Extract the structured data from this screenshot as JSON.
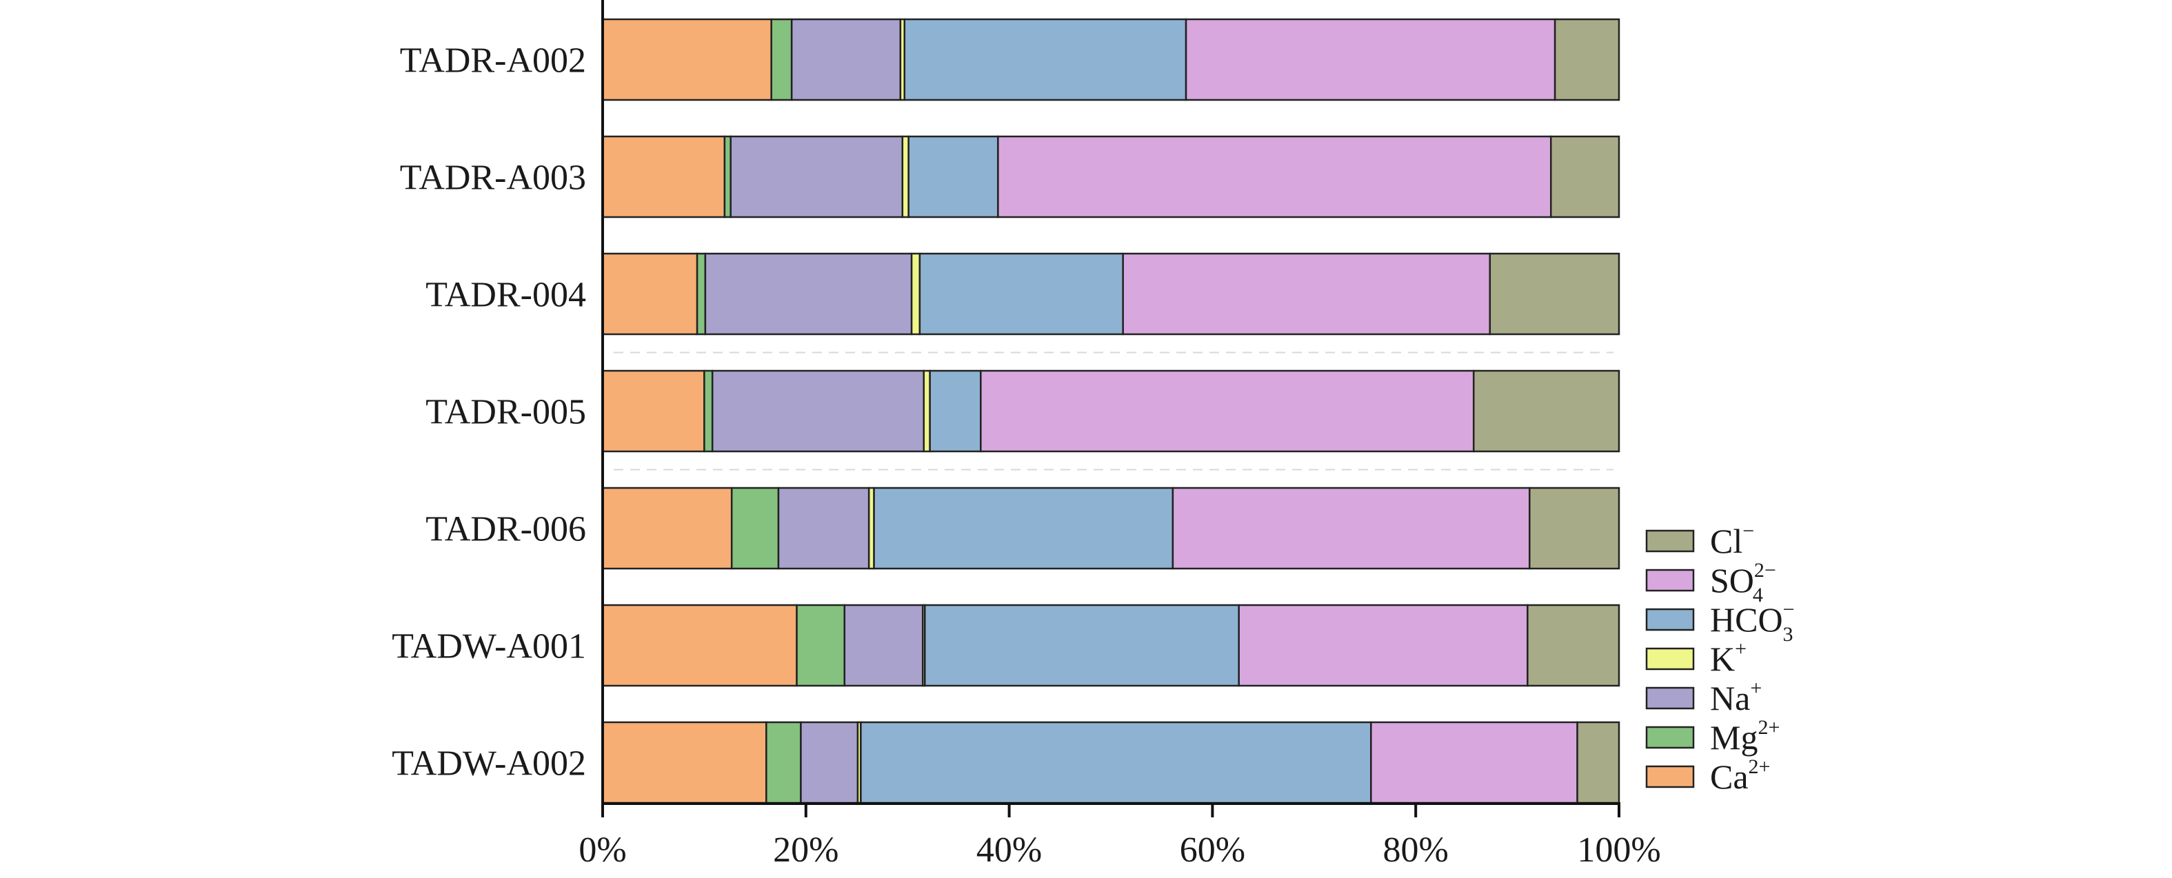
{
  "chart_data": {
    "type": "bar",
    "orientation": "horizontal",
    "stacked": true,
    "normalized": true,
    "title": "",
    "xlabel": "",
    "ylabel": "",
    "xlim": [
      0,
      100
    ],
    "x_ticks": [
      "0%",
      "20%",
      "40%",
      "60%",
      "80%",
      "100%"
    ],
    "categories": [
      "TADR-A002",
      "TADR-A003",
      "TADR-004",
      "TADR-005",
      "TADR-006",
      "TADW-A001",
      "TADW-A002"
    ],
    "legend_position": "right-bottom",
    "grid": false,
    "series": [
      {
        "name": "Ca2+",
        "label": {
          "base": "Ca",
          "sup": "2+",
          "sub": ""
        },
        "color": "#f7ae74",
        "values": [
          16.6,
          12.0,
          9.3,
          10.0,
          12.7,
          19.1,
          16.1
        ]
      },
      {
        "name": "Mg2+",
        "label": {
          "base": "Mg",
          "sup": "2+",
          "sub": ""
        },
        "color": "#85c17f",
        "values": [
          2.0,
          0.6,
          0.8,
          0.8,
          4.6,
          4.7,
          3.4
        ]
      },
      {
        "name": "Na+",
        "label": {
          "base": "Na",
          "sup": "+",
          "sub": ""
        },
        "color": "#a8a2cd",
        "values": [
          10.7,
          16.9,
          20.3,
          20.8,
          8.9,
          7.7,
          5.6
        ]
      },
      {
        "name": "K+",
        "label": {
          "base": "K",
          "sup": "+",
          "sub": ""
        },
        "color": "#eff68a",
        "values": [
          0.4,
          0.6,
          0.8,
          0.6,
          0.5,
          0.2,
          0.3
        ]
      },
      {
        "name": "HCO3-",
        "label": {
          "base": "HCO",
          "sup": "−",
          "sub": "3"
        },
        "color": "#8eb2d1",
        "values": [
          27.7,
          8.8,
          20.0,
          5.0,
          29.4,
          30.9,
          50.2
        ]
      },
      {
        "name": "SO42-",
        "label": {
          "base": "SO",
          "sup": "2−",
          "sub": "4"
        },
        "color": "#d8a7de",
        "values": [
          36.3,
          54.4,
          36.1,
          48.5,
          35.1,
          28.4,
          20.3
        ]
      },
      {
        "name": "Cl-",
        "label": {
          "base": "Cl",
          "sup": "−",
          "sub": ""
        },
        "color": "#a8ab87",
        "values": [
          6.3,
          6.7,
          12.7,
          14.3,
          8.8,
          9.0,
          4.1
        ]
      }
    ]
  }
}
